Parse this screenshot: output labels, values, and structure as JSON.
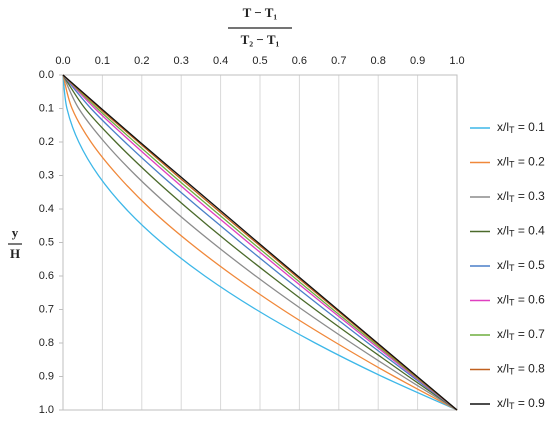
{
  "chart_data": {
    "type": "line",
    "x_label_numerator": "T − T₁",
    "x_label_denominator": "T₂ − T₁",
    "y_label_numerator": "y",
    "y_label_denominator": "H",
    "xlim": [
      0,
      1
    ],
    "ylim": [
      0,
      1
    ],
    "y_inverted": true,
    "x_axis_position": "top",
    "xticks": [
      {
        "value": 0,
        "label": "0.0"
      },
      0.1,
      0.2,
      0.3,
      0.4,
      0.5,
      0.6,
      0.7,
      0.8,
      0.9,
      {
        "value": 1,
        "label": "1.0"
      }
    ],
    "yticks": [
      {
        "value": 0,
        "label": "0.0"
      },
      0.1,
      0.2,
      0.3,
      0.4,
      0.5,
      0.6,
      0.7,
      0.8,
      0.9,
      {
        "value": 1,
        "label": "1.0"
      }
    ],
    "grid": true,
    "legend": "right",
    "y": [
      0,
      0.1,
      0.2,
      0.3,
      0.4,
      0.5,
      0.6,
      0.7,
      0.8,
      0.9,
      1
    ],
    "series": [
      {
        "name": "x/lT = 0.1",
        "color": "#3db7e8",
        "x": [
          0,
          0.01,
          0.04,
          0.09,
          0.16,
          0.25,
          0.36,
          0.49,
          0.64,
          0.81,
          1
        ]
      },
      {
        "name": "x/lT = 0.2",
        "color": "#f0883a",
        "x": [
          0,
          0.023,
          0.071,
          0.139,
          0.222,
          0.321,
          0.433,
          0.557,
          0.694,
          0.841,
          1
        ]
      },
      {
        "name": "x/lT = 0.3",
        "color": "#8c8c8c",
        "x": [
          0,
          0.04,
          0.105,
          0.185,
          0.277,
          0.379,
          0.489,
          0.607,
          0.732,
          0.863,
          1
        ]
      },
      {
        "name": "x/lT = 0.4",
        "color": "#4b6a2b",
        "x": [
          0,
          0.056,
          0.134,
          0.222,
          0.318,
          0.42,
          0.528,
          0.64,
          0.757,
          0.877,
          1
        ]
      },
      {
        "name": "x/lT = 0.5",
        "color": "#4a7fc8",
        "x": [
          0,
          0.071,
          0.157,
          0.25,
          0.349,
          0.451,
          0.556,
          0.664,
          0.774,
          0.886,
          1
        ]
      },
      {
        "name": "x/lT = 0.6",
        "color": "#e03fc0",
        "x": [
          0,
          0.081,
          0.173,
          0.269,
          0.368,
          0.47,
          0.573,
          0.678,
          0.784,
          0.891,
          1
        ]
      },
      {
        "name": "x/lT = 0.7",
        "color": "#6fae3f",
        "x": [
          0,
          0.087,
          0.182,
          0.279,
          0.379,
          0.48,
          0.582,
          0.685,
          0.79,
          0.894,
          1
        ]
      },
      {
        "name": "x/lT = 0.8",
        "color": "#c0601f",
        "x": [
          0,
          0.093,
          0.191,
          0.289,
          0.389,
          0.49,
          0.591,
          0.693,
          0.795,
          0.897,
          1
        ]
      },
      {
        "name": "x/lT = 0.9",
        "color": "#111111",
        "x": [
          0,
          0.097,
          0.195,
          0.295,
          0.395,
          0.495,
          0.596,
          0.697,
          0.798,
          0.899,
          1
        ]
      }
    ]
  }
}
